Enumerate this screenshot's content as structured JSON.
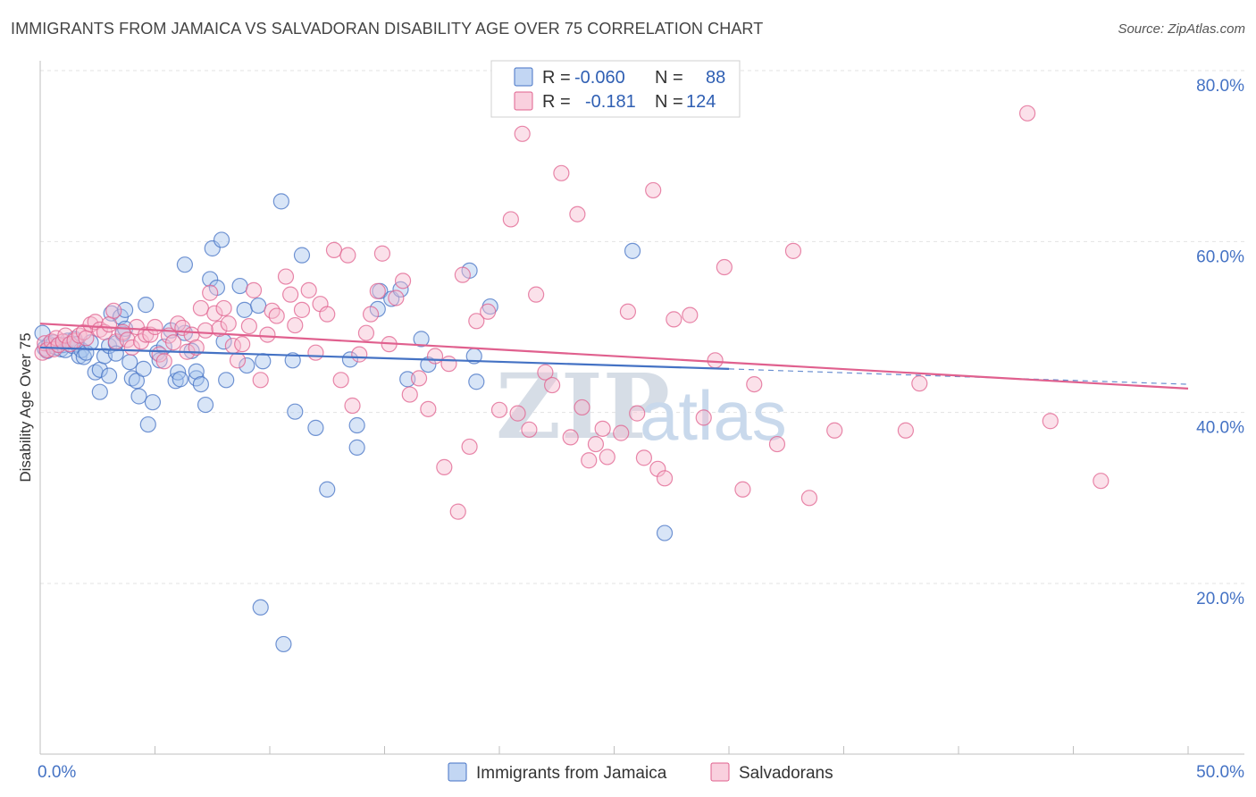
{
  "title": "IMMIGRANTS FROM JAMAICA VS SALVADORAN DISABILITY AGE OVER 75 CORRELATION CHART",
  "source": "Source: ZipAtlas.com",
  "watermark": {
    "zip": "ZIP",
    "atlas": "atlas"
  },
  "legend_top": [
    {
      "r_label": "R =",
      "r_value": "-0.060",
      "n_label": "N =",
      "n_value": "88"
    },
    {
      "r_label": "R =",
      "r_value": "-0.181",
      "n_label": "N =",
      "n_value": "124"
    }
  ],
  "chart_data": {
    "type": "scatter",
    "ylabel": "Disability Age Over 75",
    "xlim": [
      0,
      50
    ],
    "ylim": [
      3,
      82
    ],
    "x_tick_labels": [
      {
        "value": 0,
        "label": "0.0%"
      },
      {
        "value": 50,
        "label": "50.0%"
      }
    ],
    "x_minor_ticks": [
      5,
      10,
      15,
      20,
      25,
      30,
      35,
      40,
      45
    ],
    "y_ticks": [
      {
        "value": 20,
        "label": "20.0%"
      },
      {
        "value": 40,
        "label": "40.0%"
      },
      {
        "value": 60,
        "label": "60.0%"
      },
      {
        "value": 80,
        "label": "80.0%"
      }
    ],
    "grid": true,
    "series": [
      {
        "name": "Immigrants from Jamaica",
        "color": "#4472c4",
        "fill": "#a8c5ee",
        "trend": {
          "x0": 0,
          "y0": 47.6,
          "x1": 30,
          "y1": 45.1,
          "dash_to_x": 50,
          "dash_to_y": 43.3
        },
        "points": [
          [
            0.1,
            49.3
          ],
          [
            0.2,
            47.5
          ],
          [
            0.3,
            47.2
          ],
          [
            0.4,
            48.0
          ],
          [
            0.5,
            47.8
          ],
          [
            0.6,
            48.2
          ],
          [
            0.7,
            47.6
          ],
          [
            0.8,
            47.9
          ],
          [
            0.9,
            47.4
          ],
          [
            1.0,
            47.9
          ],
          [
            1.1,
            47.3
          ],
          [
            1.2,
            48.4
          ],
          [
            1.4,
            47.8
          ],
          [
            1.5,
            48.6
          ],
          [
            1.6,
            48.0
          ],
          [
            1.7,
            46.6
          ],
          [
            1.8,
            47.3
          ],
          [
            1.9,
            46.5
          ],
          [
            2.0,
            47.0
          ],
          [
            2.2,
            48.2
          ],
          [
            2.4,
            44.7
          ],
          [
            2.6,
            45.0
          ],
          [
            2.6,
            42.4
          ],
          [
            2.8,
            46.6
          ],
          [
            3.0,
            44.3
          ],
          [
            3.0,
            47.8
          ],
          [
            3.1,
            51.6
          ],
          [
            3.3,
            48.1
          ],
          [
            3.3,
            46.9
          ],
          [
            3.5,
            51.2
          ],
          [
            3.6,
            49.2
          ],
          [
            3.7,
            49.8
          ],
          [
            3.7,
            52.0
          ],
          [
            3.9,
            45.9
          ],
          [
            4.0,
            44.0
          ],
          [
            4.2,
            43.7
          ],
          [
            4.3,
            41.9
          ],
          [
            4.5,
            45.1
          ],
          [
            4.6,
            52.6
          ],
          [
            4.7,
            38.6
          ],
          [
            4.9,
            41.2
          ],
          [
            5.1,
            47.0
          ],
          [
            5.2,
            46.1
          ],
          [
            5.4,
            47.7
          ],
          [
            5.7,
            49.6
          ],
          [
            5.9,
            43.7
          ],
          [
            6.0,
            44.7
          ],
          [
            6.1,
            43.9
          ],
          [
            6.3,
            57.3
          ],
          [
            6.3,
            49.3
          ],
          [
            6.6,
            47.2
          ],
          [
            6.8,
            44.0
          ],
          [
            6.8,
            44.8
          ],
          [
            7.0,
            43.3
          ],
          [
            7.2,
            40.9
          ],
          [
            7.4,
            55.6
          ],
          [
            7.5,
            59.2
          ],
          [
            7.7,
            54.6
          ],
          [
            7.9,
            60.2
          ],
          [
            8.0,
            48.3
          ],
          [
            8.1,
            43.8
          ],
          [
            8.7,
            54.8
          ],
          [
            8.9,
            52.0
          ],
          [
            9.0,
            45.5
          ],
          [
            9.5,
            52.5
          ],
          [
            9.7,
            46.0
          ],
          [
            9.6,
            17.2
          ],
          [
            10.5,
            64.7
          ],
          [
            10.6,
            12.9
          ],
          [
            11.0,
            46.1
          ],
          [
            11.1,
            40.1
          ],
          [
            11.4,
            58.4
          ],
          [
            12.0,
            38.2
          ],
          [
            12.5,
            31.0
          ],
          [
            13.5,
            46.2
          ],
          [
            13.8,
            35.9
          ],
          [
            13.8,
            38.5
          ],
          [
            14.7,
            52.1
          ],
          [
            14.8,
            54.2
          ],
          [
            15.3,
            53.3
          ],
          [
            15.7,
            54.4
          ],
          [
            16.0,
            43.9
          ],
          [
            16.6,
            48.6
          ],
          [
            16.9,
            45.6
          ],
          [
            18.7,
            56.6
          ],
          [
            18.9,
            46.6
          ],
          [
            19.0,
            43.6
          ],
          [
            19.6,
            52.4
          ],
          [
            25.8,
            58.9
          ],
          [
            27.2,
            25.9
          ]
        ]
      },
      {
        "name": "Salvadorans",
        "color": "#e0608e",
        "fill": "#f6bcd0",
        "trend": {
          "x0": 0,
          "y0": 50.4,
          "x1": 50,
          "y1": 42.8,
          "dash_to_x": 50,
          "dash_to_y": 42.8
        },
        "points": [
          [
            0.1,
            47.0
          ],
          [
            0.2,
            48.1
          ],
          [
            0.3,
            47.3
          ],
          [
            0.5,
            48.3
          ],
          [
            0.6,
            47.4
          ],
          [
            0.7,
            48.7
          ],
          [
            0.8,
            47.9
          ],
          [
            1.0,
            48.3
          ],
          [
            1.1,
            49.0
          ],
          [
            1.3,
            48.0
          ],
          [
            1.5,
            48.4
          ],
          [
            1.7,
            49.0
          ],
          [
            1.9,
            49.4
          ],
          [
            2.0,
            48.7
          ],
          [
            2.2,
            50.3
          ],
          [
            2.4,
            50.6
          ],
          [
            2.6,
            49.7
          ],
          [
            2.8,
            49.4
          ],
          [
            3.0,
            50.3
          ],
          [
            3.2,
            51.9
          ],
          [
            3.3,
            48.3
          ],
          [
            3.6,
            49.4
          ],
          [
            3.8,
            48.5
          ],
          [
            4.0,
            47.6
          ],
          [
            4.2,
            50.0
          ],
          [
            4.4,
            48.3
          ],
          [
            4.6,
            49.1
          ],
          [
            4.8,
            49.1
          ],
          [
            5.0,
            50.0
          ],
          [
            5.2,
            46.8
          ],
          [
            5.4,
            46.0
          ],
          [
            5.6,
            49.0
          ],
          [
            5.8,
            48.2
          ],
          [
            6.0,
            50.4
          ],
          [
            6.2,
            49.9
          ],
          [
            6.4,
            47.1
          ],
          [
            6.6,
            49.1
          ],
          [
            6.8,
            47.6
          ],
          [
            7.0,
            52.2
          ],
          [
            7.2,
            49.6
          ],
          [
            7.4,
            54.0
          ],
          [
            7.6,
            51.6
          ],
          [
            7.8,
            49.8
          ],
          [
            8.0,
            52.2
          ],
          [
            8.2,
            50.4
          ],
          [
            8.4,
            47.8
          ],
          [
            8.6,
            46.1
          ],
          [
            8.8,
            48.0
          ],
          [
            9.1,
            50.1
          ],
          [
            9.3,
            54.3
          ],
          [
            9.6,
            43.8
          ],
          [
            9.9,
            49.1
          ],
          [
            10.1,
            51.9
          ],
          [
            10.3,
            51.3
          ],
          [
            10.7,
            55.9
          ],
          [
            10.9,
            53.8
          ],
          [
            11.1,
            50.2
          ],
          [
            11.4,
            52.0
          ],
          [
            11.7,
            54.3
          ],
          [
            12.0,
            47.0
          ],
          [
            12.2,
            52.7
          ],
          [
            12.5,
            51.5
          ],
          [
            12.8,
            59.0
          ],
          [
            13.1,
            43.8
          ],
          [
            13.4,
            58.4
          ],
          [
            13.6,
            40.8
          ],
          [
            13.9,
            46.8
          ],
          [
            14.2,
            49.3
          ],
          [
            14.4,
            51.5
          ],
          [
            14.7,
            54.2
          ],
          [
            14.9,
            58.6
          ],
          [
            15.2,
            48.0
          ],
          [
            15.5,
            53.4
          ],
          [
            15.8,
            55.4
          ],
          [
            16.1,
            42.1
          ],
          [
            16.5,
            44.0
          ],
          [
            16.9,
            40.4
          ],
          [
            17.2,
            46.6
          ],
          [
            17.6,
            33.6
          ],
          [
            17.8,
            45.7
          ],
          [
            18.2,
            28.4
          ],
          [
            18.4,
            56.1
          ],
          [
            18.7,
            36.0
          ],
          [
            19.0,
            50.7
          ],
          [
            19.5,
            51.8
          ],
          [
            20.0,
            40.3
          ],
          [
            20.5,
            62.6
          ],
          [
            20.8,
            39.9
          ],
          [
            21.0,
            72.6
          ],
          [
            21.3,
            38.0
          ],
          [
            21.6,
            53.8
          ],
          [
            22.0,
            44.7
          ],
          [
            22.3,
            43.2
          ],
          [
            22.7,
            68.0
          ],
          [
            23.1,
            37.1
          ],
          [
            23.4,
            63.2
          ],
          [
            23.6,
            40.6
          ],
          [
            23.9,
            34.4
          ],
          [
            24.2,
            36.3
          ],
          [
            24.5,
            38.1
          ],
          [
            24.7,
            34.8
          ],
          [
            25.3,
            37.6
          ],
          [
            25.6,
            51.8
          ],
          [
            26.0,
            39.9
          ],
          [
            26.3,
            34.7
          ],
          [
            26.7,
            66.0
          ],
          [
            26.9,
            33.4
          ],
          [
            27.2,
            32.3
          ],
          [
            27.6,
            50.9
          ],
          [
            28.3,
            51.4
          ],
          [
            28.9,
            39.4
          ],
          [
            29.4,
            46.1
          ],
          [
            29.8,
            57.0
          ],
          [
            30.6,
            31.0
          ],
          [
            31.1,
            43.3
          ],
          [
            32.1,
            36.3
          ],
          [
            32.8,
            58.9
          ],
          [
            33.5,
            30.0
          ],
          [
            34.6,
            37.9
          ],
          [
            37.7,
            37.9
          ],
          [
            38.3,
            43.4
          ],
          [
            43.0,
            75.0
          ],
          [
            44.0,
            39.0
          ],
          [
            46.2,
            32.0
          ]
        ]
      }
    ]
  }
}
